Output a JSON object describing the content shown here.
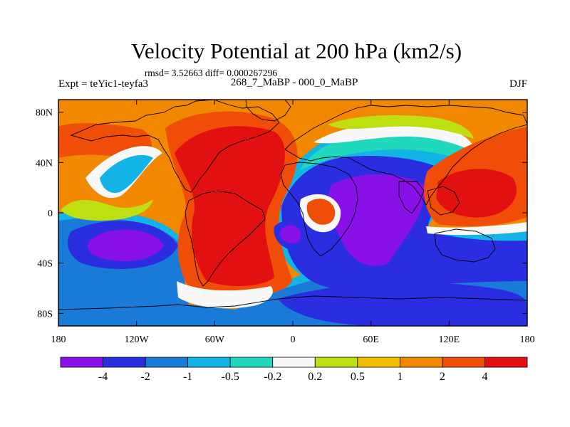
{
  "chart_data": {
    "type": "heatmap",
    "title": "Velocity Potential at 200 hPa (km2/s)",
    "subtitle_stats": "rmsd= 3.52663 diff= 0.000267296",
    "left_label": "Expt = teYic1-teyfa3",
    "center_label": "268_7_MaBP - 000_0_MaBP",
    "right_label": "DJF",
    "x_ticks": [
      "180",
      "120W",
      "60W",
      "0",
      "60E",
      "120E",
      "180"
    ],
    "x_tick_values": [
      -180,
      -120,
      -60,
      0,
      60,
      120,
      180
    ],
    "y_ticks": [
      "80N",
      "40N",
      "0",
      "40S",
      "80S"
    ],
    "y_tick_values": [
      80,
      40,
      0,
      -40,
      -80
    ],
    "xlim": [
      -180,
      180
    ],
    "ylim": [
      -90,
      90
    ],
    "levels": [
      "-4",
      "-2",
      "-1",
      "-0.5",
      "-0.2",
      "0.2",
      "0.5",
      "1",
      "2",
      "4"
    ],
    "colors": [
      "#8a10e8",
      "#2a2ee0",
      "#1a7ad8",
      "#12b4e6",
      "#20d8be",
      "#f8f8f8",
      "#bfe010",
      "#f2c000",
      "#f28800",
      "#f04d08",
      "#e21010"
    ]
  }
}
